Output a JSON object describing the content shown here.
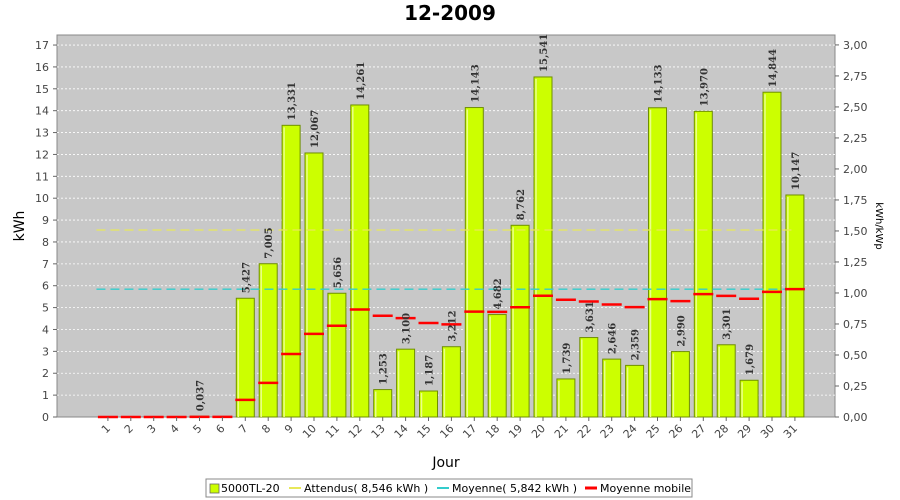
{
  "chart_data": {
    "type": "bar",
    "title": "12-2009",
    "xlabel": "Jour",
    "ylabel": "kWh",
    "ylabel_right": "kWh/kWp",
    "ylim": [
      0,
      17.5
    ],
    "ylim_right": [
      0,
      3.08
    ],
    "yticks": [
      0,
      1,
      2,
      3,
      4,
      5,
      6,
      7,
      8,
      9,
      10,
      11,
      12,
      13,
      14,
      15,
      16,
      17
    ],
    "yticks_right": [
      "0,00",
      "0,25",
      "0,50",
      "0,75",
      "1,00",
      "1,25",
      "1,50",
      "1,75",
      "2,00",
      "2,25",
      "2,50",
      "2,75",
      "3,00"
    ],
    "grid": true,
    "legend_position": "bottom",
    "categories": [
      "1",
      "2",
      "3",
      "4",
      "5",
      "6",
      "7",
      "8",
      "9",
      "10",
      "11",
      "12",
      "13",
      "14",
      "15",
      "16",
      "17",
      "18",
      "19",
      "20",
      "21",
      "22",
      "23",
      "24",
      "25",
      "26",
      "27",
      "28",
      "29",
      "30",
      "31"
    ],
    "series": [
      {
        "name": "5000TL-20",
        "kind": "bar",
        "color": "#ccff00",
        "values": [
          0,
          0,
          0,
          0,
          0.037,
          0,
          5.427,
          7.005,
          13.331,
          12.067,
          5.656,
          14.261,
          1.253,
          3.1,
          1.187,
          3.212,
          14.143,
          4.682,
          8.762,
          15.541,
          1.739,
          3.631,
          2.646,
          2.359,
          14.133,
          2.99,
          13.97,
          3.301,
          1.679,
          14.844,
          10.147
        ],
        "labels": [
          "",
          "",
          "",
          "",
          "0,037",
          "",
          "5,427",
          "7,005",
          "13,331",
          "12,067",
          "5,656",
          "14,261",
          "1,253",
          "3,100",
          "1,187",
          "3,212",
          "14,143",
          "4,682",
          "8,762",
          "15,541",
          "1,739",
          "3,631",
          "2,646",
          "2,359",
          "14,133",
          "2,990",
          "13,970",
          "3,301",
          "1,679",
          "14,844",
          "10,147"
        ]
      },
      {
        "name": "Attendus( 8,546 kWh )",
        "kind": "dashed-line",
        "color": "#e8e85a",
        "value": 8.546
      },
      {
        "name": "Moyenne( 5,842 kWh )",
        "kind": "dashed-line",
        "color": "#33cccc",
        "value": 5.842
      },
      {
        "name": "Moyenne mobile",
        "kind": "step-marker",
        "color": "#ff0000",
        "values": [
          0,
          0,
          0,
          0,
          0.007,
          0.006,
          0.781,
          1.558,
          2.88,
          3.799,
          4.168,
          4.911,
          4.63,
          4.521,
          4.299,
          4.231,
          4.814,
          4.807,
          5.015,
          5.541,
          5.36,
          5.281,
          5.141,
          5.024,
          5.389,
          5.297,
          5.618,
          5.535,
          5.402,
          5.716,
          5.842
        ]
      }
    ]
  },
  "legend": {
    "items": [
      {
        "label": "5000TL-20",
        "color": "#ccff00"
      },
      {
        "label": "Attendus( 8,546 kWh )",
        "color": "#e8e85a"
      },
      {
        "label": "Moyenne( 5,842 kWh )",
        "color": "#33cccc"
      },
      {
        "label": "Moyenne mobile",
        "color": "#ff0000"
      }
    ]
  }
}
